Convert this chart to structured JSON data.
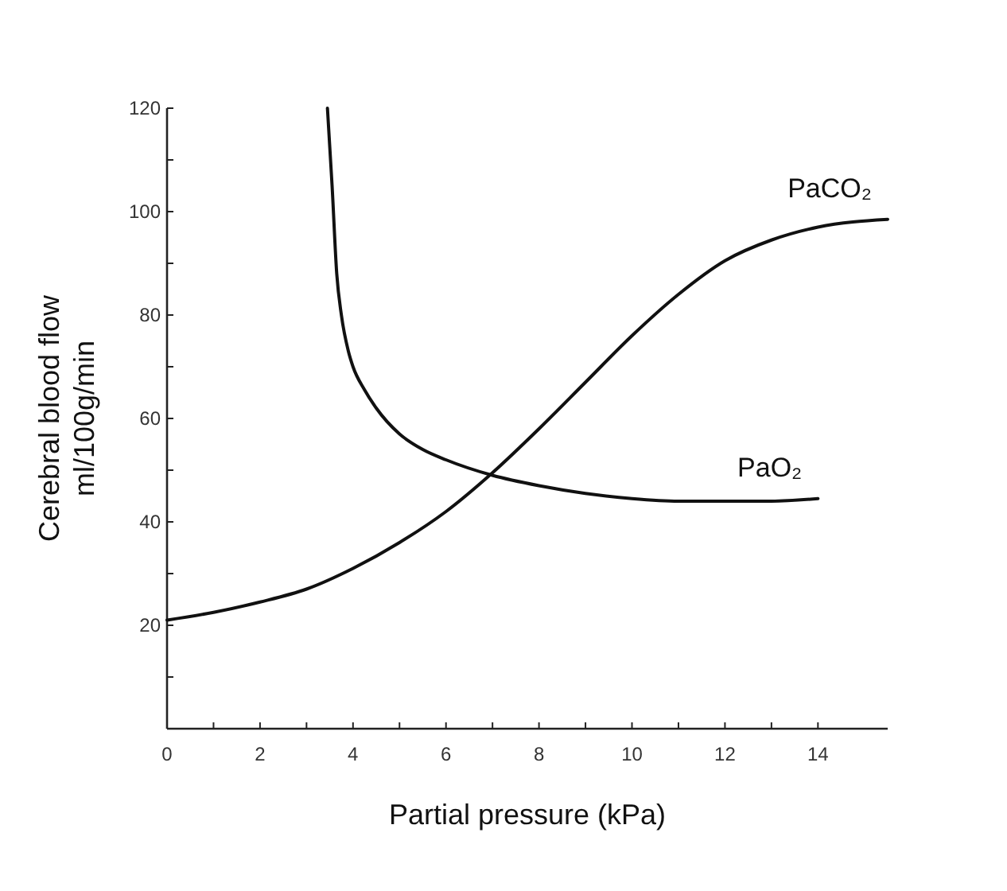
{
  "chart_data": {
    "type": "line",
    "xlabel": "Partial pressure (kPa)",
    "ylabel": "Cerebral blood flow\nml/100g/min",
    "xlim": [
      0,
      15.5
    ],
    "ylim": [
      0,
      120
    ],
    "xticks": [
      0,
      {
        "value": 1,
        "label": null
      },
      2,
      {
        "value": 3,
        "label": null
      },
      4,
      {
        "value": 5,
        "label": null
      },
      6,
      {
        "value": 7,
        "label": null
      },
      8,
      {
        "value": 9,
        "label": null
      },
      10,
      {
        "value": 11,
        "label": null
      },
      12,
      {
        "value": 13,
        "label": null
      },
      14
    ],
    "yticks": [
      {
        "value": 10,
        "label": null
      },
      20,
      {
        "value": 30,
        "label": null
      },
      40,
      {
        "value": 50,
        "label": null
      },
      60,
      {
        "value": 70,
        "label": null
      },
      80,
      {
        "value": 90,
        "label": null
      },
      100,
      {
        "value": 110,
        "label": null
      },
      120
    ],
    "grid": false,
    "marker": "none",
    "line_style": "solid",
    "series": [
      {
        "name": "PaCO₂",
        "color": "#111111",
        "x": [
          0,
          1,
          2,
          3,
          4,
          5,
          6,
          7,
          8,
          9,
          10,
          11,
          12,
          13,
          14,
          15.5
        ],
        "values": [
          21,
          22.5,
          24.5,
          27,
          31,
          36,
          42,
          49.5,
          58,
          67,
          76,
          84,
          90.5,
          94.5,
          97,
          98.5
        ]
      },
      {
        "name": "PaO₂",
        "color": "#111111",
        "x": [
          3.45,
          3.55,
          3.65,
          3.75,
          3.9,
          4,
          4.25,
          4.5,
          5,
          5.5,
          6,
          7,
          8,
          9,
          10,
          11,
          12,
          13,
          14
        ],
        "values": [
          120,
          105,
          88,
          80,
          73,
          70,
          65.5,
          62,
          57,
          54,
          52,
          49,
          47,
          45.5,
          44.5,
          44,
          44,
          44,
          44.5
        ]
      }
    ]
  }
}
